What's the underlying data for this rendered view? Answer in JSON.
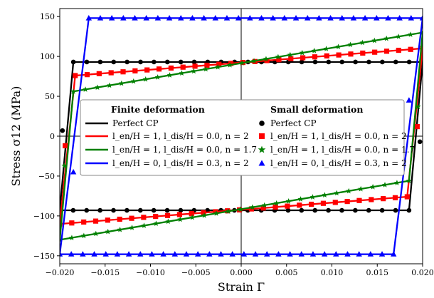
{
  "chart_data": {
    "type": "line",
    "title": "",
    "xlabel": "Strain Γ",
    "ylabel": "Stress σ12 (MPa)",
    "xlim": [
      -0.02,
      0.02
    ],
    "ylim": [
      -160,
      160
    ],
    "xticks": [
      -0.02,
      -0.015,
      -0.01,
      -0.005,
      0.0,
      0.005,
      0.01,
      0.015,
      0.02
    ],
    "xtick_labels": [
      "−0.020",
      "−0.015",
      "−0.010",
      "−0.005",
      "0.000",
      "0.005",
      "0.010",
      "0.015",
      "0.020"
    ],
    "yticks": [
      -150,
      -100,
      -50,
      0,
      50,
      100,
      150
    ],
    "ytick_labels": [
      "−150",
      "−100",
      "−50",
      "0",
      "50",
      "100",
      "150"
    ],
    "grid": false,
    "reference_lines": {
      "x": 0,
      "y": 0
    },
    "legend": {
      "placement": "center",
      "columns": [
        {
          "title": "Finite deformation",
          "style": "line"
        },
        {
          "title": "Small deformation",
          "style": "marker"
        }
      ]
    },
    "series": [
      {
        "name": "Perfect CP",
        "color": "#000000",
        "marker": "circle",
        "loop": [
          [
            -0.02,
            -93
          ],
          [
            -0.0185,
            93
          ],
          [
            0.02,
            93
          ],
          [
            0.0185,
            -93
          ],
          [
            -0.02,
            -93
          ]
        ],
        "loop_markers": [
          [
            -0.0197,
            7
          ],
          [
            0.0197,
            -7
          ]
        ]
      },
      {
        "name": "l_en/H=1, l_dis/H=0.0, n=2",
        "color": "#ff0000",
        "marker": "square",
        "loop": [
          [
            -0.02,
            -110
          ],
          [
            -0.0183,
            76
          ],
          [
            0.02,
            110
          ],
          [
            0.0183,
            -76
          ],
          [
            -0.02,
            -110
          ]
        ],
        "loop_markers": [
          [
            -0.0194,
            -12
          ],
          [
            0.0194,
            12
          ]
        ]
      },
      {
        "name": "l_en/H=1, l_dis/H=0.0, n=1.7",
        "color": "#008000",
        "marker": "star",
        "loop": [
          [
            -0.02,
            -130
          ],
          [
            -0.0185,
            56
          ],
          [
            0.02,
            130
          ],
          [
            0.0185,
            -56
          ],
          [
            -0.02,
            -130
          ]
        ],
        "loop_markers": [
          [
            -0.0195,
            -37
          ],
          [
            0.0195,
            37
          ]
        ]
      },
      {
        "name": "l_en/H=0, l_dis/H=0.3, n=2",
        "color": "#0000ff",
        "marker": "triangle",
        "loop": [
          [
            -0.02,
            -148
          ],
          [
            -0.0168,
            148
          ],
          [
            0.02,
            148
          ],
          [
            0.0168,
            -148
          ],
          [
            -0.02,
            -148
          ]
        ],
        "loop_markers": [
          [
            -0.0185,
            -45
          ],
          [
            0.0185,
            45
          ]
        ]
      }
    ]
  },
  "legend_labels": {
    "finite_title": "Finite deformation",
    "small_title": "Small deformation",
    "perfect": "Perfect CP",
    "red": "l_en/H = 1,  l_dis/H = 0.0,  n = 2",
    "green": "l_en/H = 1,  l_dis/H = 0.0,  n = 1.7",
    "blue": "l_en/H = 0,  l_dis/H = 0.3,  n = 2"
  }
}
